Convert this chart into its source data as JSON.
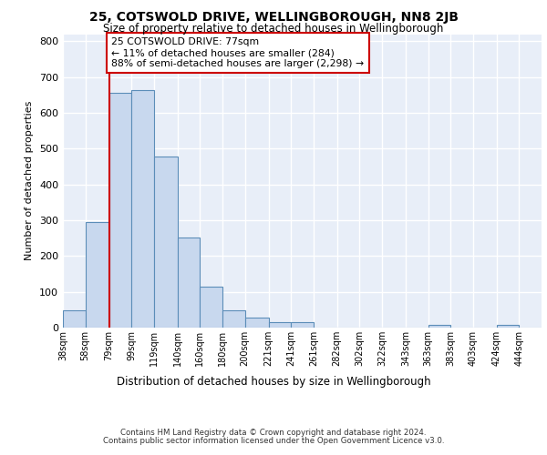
{
  "title_line1": "25, COTSWOLD DRIVE, WELLINGBOROUGH, NN8 2JB",
  "title_line2": "Size of property relative to detached houses in Wellingborough",
  "xlabel": "Distribution of detached houses by size in Wellingborough",
  "ylabel": "Number of detached properties",
  "footer_line1": "Contains HM Land Registry data © Crown copyright and database right 2024.",
  "footer_line2": "Contains public sector information licensed under the Open Government Licence v3.0.",
  "bin_labels": [
    "38sqm",
    "58sqm",
    "79sqm",
    "99sqm",
    "119sqm",
    "140sqm",
    "160sqm",
    "180sqm",
    "200sqm",
    "221sqm",
    "241sqm",
    "261sqm",
    "282sqm",
    "302sqm",
    "322sqm",
    "343sqm",
    "363sqm",
    "383sqm",
    "403sqm",
    "424sqm",
    "444sqm"
  ],
  "bar_values": [
    48,
    295,
    655,
    663,
    478,
    252,
    115,
    48,
    28,
    16,
    14,
    0,
    0,
    0,
    0,
    0,
    8,
    0,
    0,
    8,
    0
  ],
  "bar_color": "#c8d8ee",
  "bar_edge_color": "#5b8db8",
  "background_color": "#e8eef8",
  "grid_color": "#ffffff",
  "vline_color": "#cc0000",
  "vline_x": 79,
  "annotation_line1": "25 COTSWOLD DRIVE: 77sqm",
  "annotation_line2": "← 11% of detached houses are smaller (284)",
  "annotation_line3": "88% of semi-detached houses are larger (2,298) →",
  "annotation_box_facecolor": "#ffffff",
  "annotation_box_edgecolor": "#cc0000",
  "ylim": [
    0,
    820
  ],
  "yticks": [
    0,
    100,
    200,
    300,
    400,
    500,
    600,
    700,
    800
  ],
  "bin_edges": [
    38,
    58,
    79,
    99,
    119,
    140,
    160,
    180,
    200,
    221,
    241,
    261,
    282,
    302,
    322,
    343,
    363,
    383,
    403,
    424,
    444,
    464
  ]
}
